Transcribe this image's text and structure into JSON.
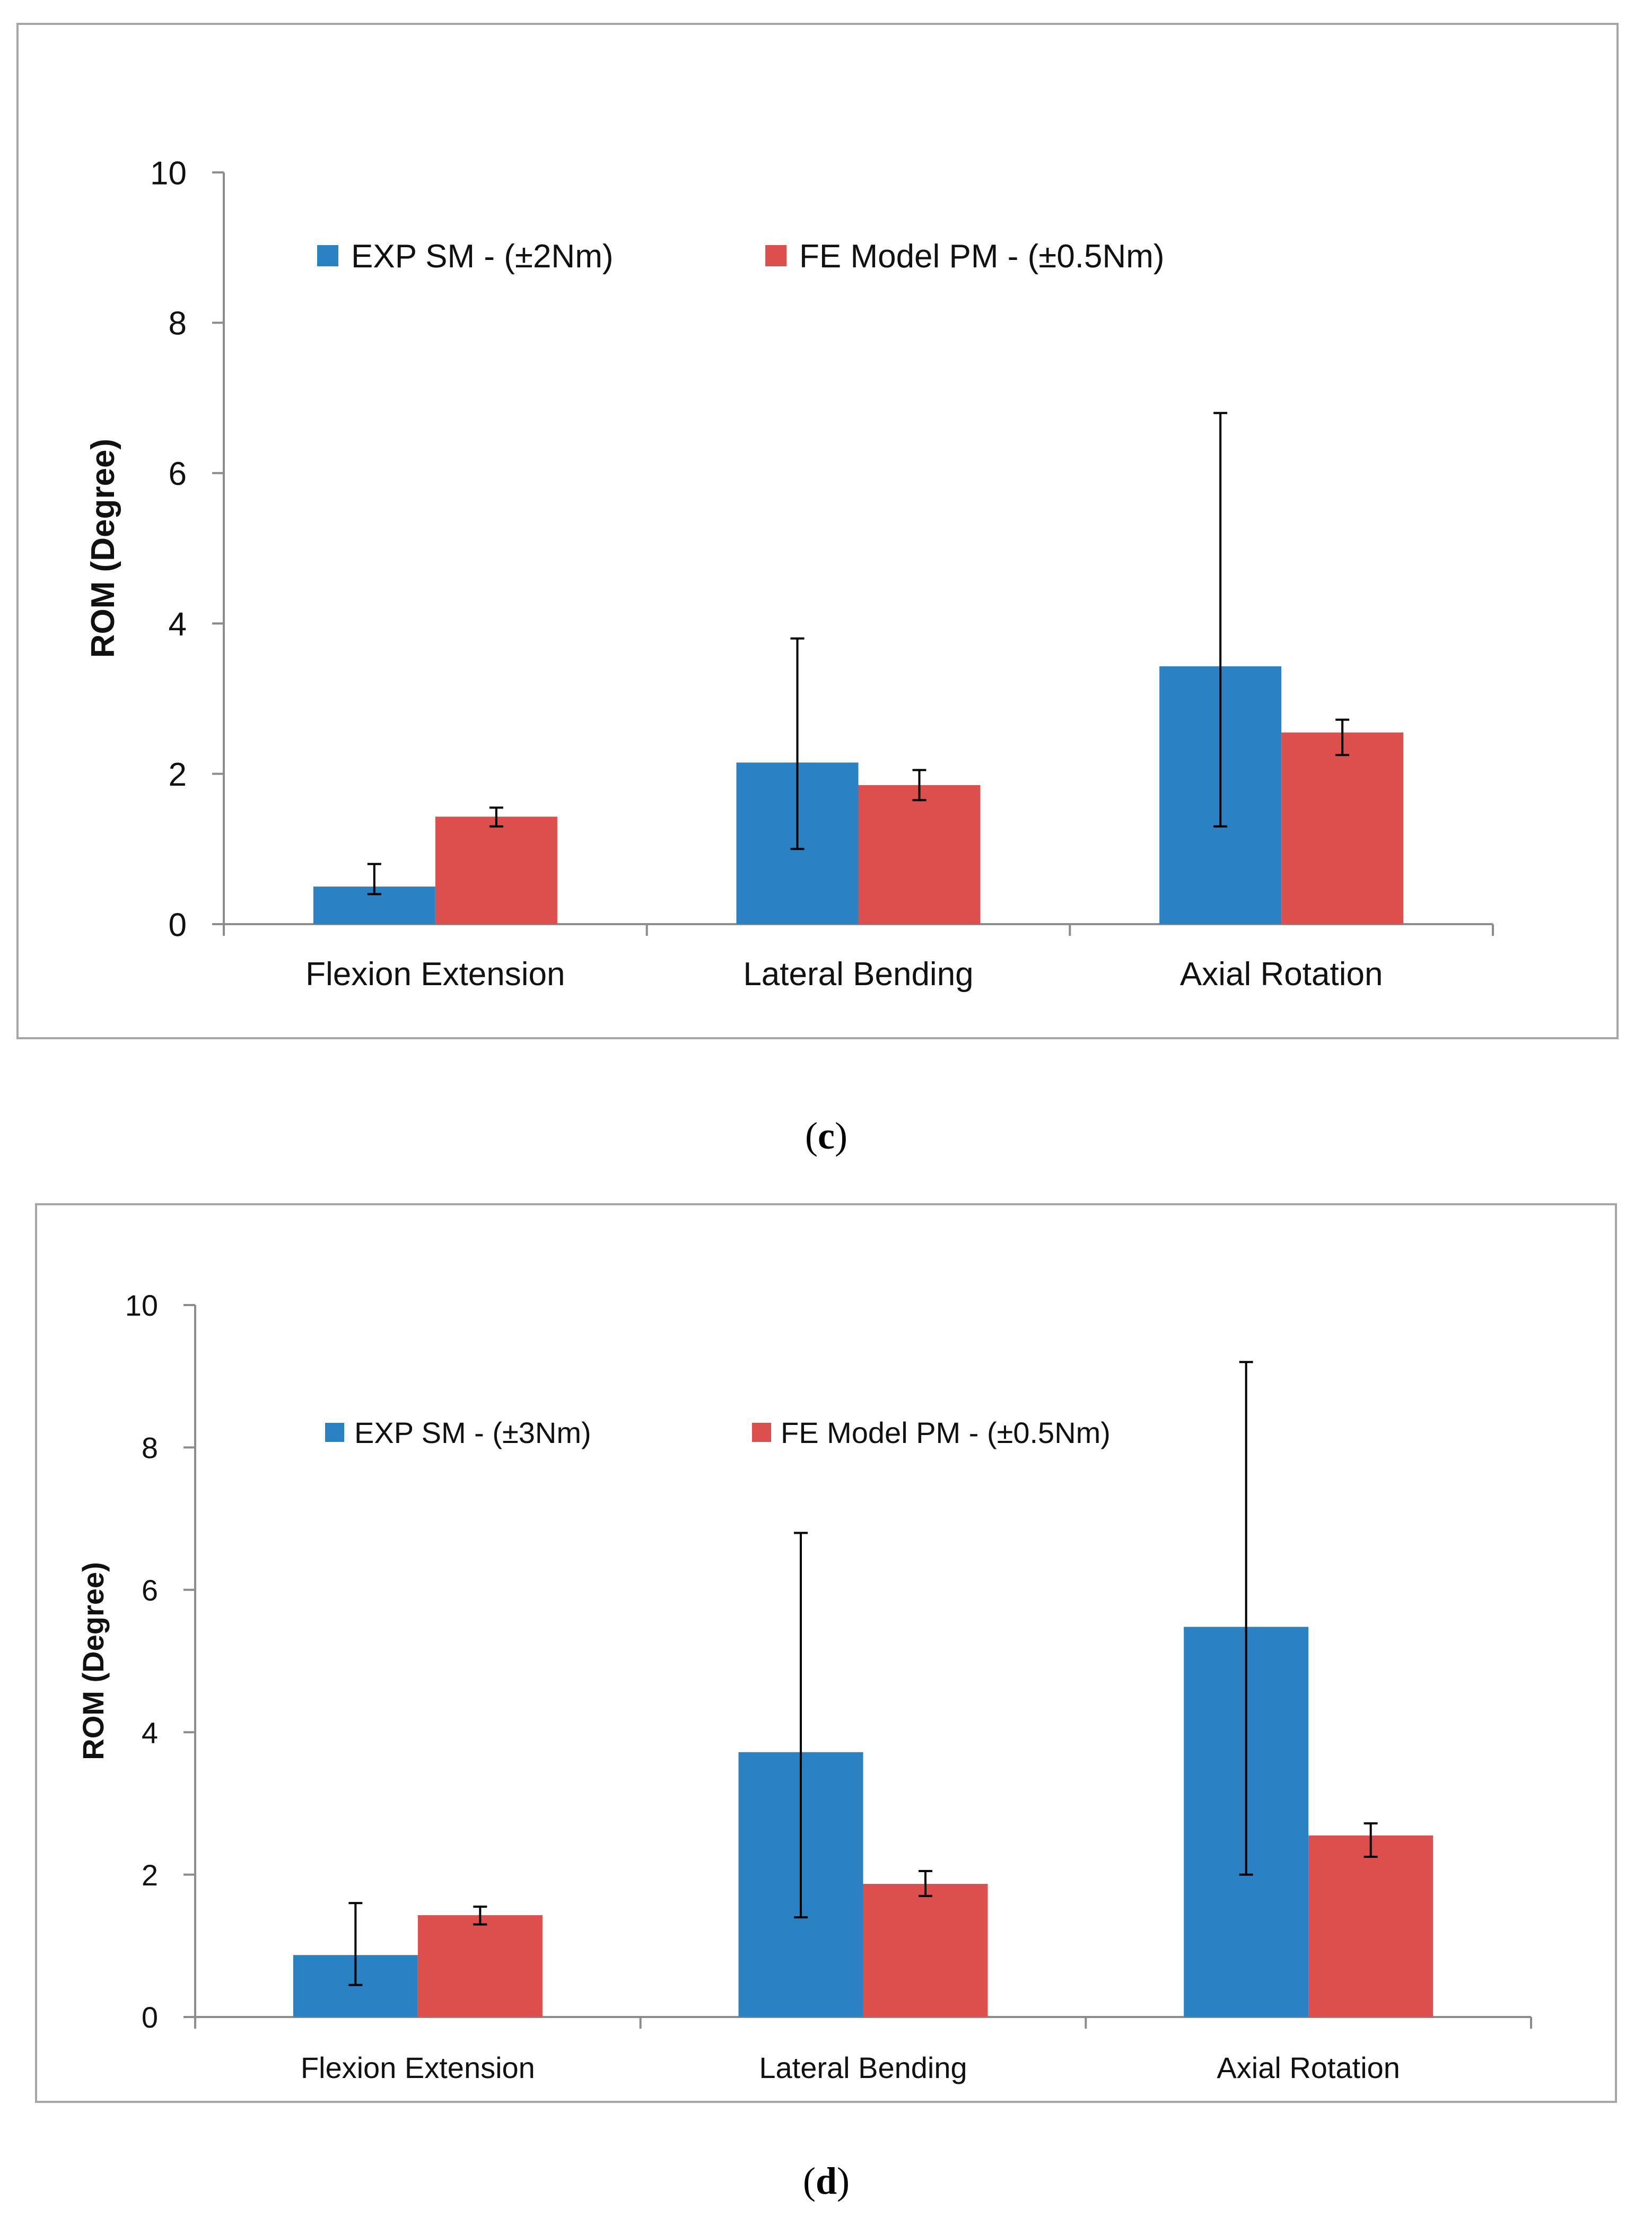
{
  "colors": {
    "series_exp": "#2a82c3",
    "series_fe": "#dc4f4d",
    "axis": "#8c8c8c",
    "frame": "#a6a6a6",
    "text": "#111111"
  },
  "chart_data": [
    {
      "type": "bar",
      "panel": "c",
      "categories": [
        "Flexion Extension",
        "Lateral Bending",
        "Axial Rotation"
      ],
      "series": [
        {
          "name": "EXP SM - (±2Nm)",
          "values": [
            0.5,
            2.15,
            3.43
          ],
          "err_low": [
            0.4,
            1.0,
            1.3
          ],
          "err_high": [
            0.8,
            3.8,
            6.8
          ]
        },
        {
          "name": "FE Model PM - (±0.5Nm)",
          "values": [
            1.43,
            1.85,
            2.55
          ],
          "err_low": [
            1.3,
            1.65,
            2.25
          ],
          "err_high": [
            1.55,
            2.05,
            2.72
          ]
        }
      ],
      "ylabel": "ROM (Degree)",
      "xlabel": "",
      "ylim": [
        0,
        10
      ],
      "yticks": [
        "0",
        "2",
        "4",
        "6",
        "8",
        "10"
      ],
      "legend_position": "top"
    },
    {
      "type": "bar",
      "panel": "d",
      "categories": [
        "Flexion Extension",
        "Lateral Bending",
        "Axial Rotation"
      ],
      "series": [
        {
          "name": "EXP SM - (±3Nm)",
          "values": [
            0.87,
            3.72,
            5.48
          ],
          "err_low": [
            0.45,
            1.4,
            2.0
          ],
          "err_high": [
            1.6,
            6.8,
            9.2
          ]
        },
        {
          "name": "FE Model PM - (±0.5Nm)",
          "values": [
            1.43,
            1.87,
            2.55
          ],
          "err_low": [
            1.3,
            1.7,
            2.25
          ],
          "err_high": [
            1.55,
            2.05,
            2.72
          ]
        }
      ],
      "ylabel": "ROM (Degree)",
      "xlabel": "",
      "ylim": [
        0,
        10
      ],
      "yticks": [
        "0",
        "2",
        "4",
        "6",
        "8",
        "10"
      ],
      "legend_position": "top"
    }
  ],
  "captions": [
    {
      "open": "(",
      "letter": "c",
      "close": ")"
    },
    {
      "open": "(",
      "letter": "d",
      "close": ")"
    }
  ]
}
